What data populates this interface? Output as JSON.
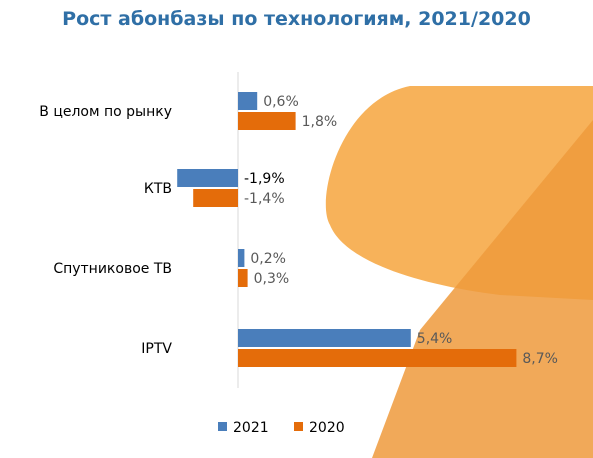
{
  "colors": {
    "title": "#2f6fa6",
    "series_2021": "#4a7ebb",
    "series_2020": "#e46c0a",
    "axis": "#d9d9d9",
    "value_label": "#595959",
    "value_label_emph": "#000000",
    "deco_light": "#f7b25a",
    "deco_dark": "#ef9a3c"
  },
  "chart_data": {
    "type": "bar",
    "orientation": "horizontal",
    "title": "Рост абонбазы по технологиям, 2021/2020",
    "categories": [
      "В целом по рынку",
      "КТВ",
      "Спутниковое ТВ",
      "IPTV"
    ],
    "series": [
      {
        "name": "2021",
        "values": [
          0.6,
          -1.9,
          0.2,
          5.4
        ],
        "labels": [
          "0,6%",
          "-1,9%",
          "0,2%",
          "5,4%"
        ]
      },
      {
        "name": "2020",
        "values": [
          1.8,
          -1.4,
          0.3,
          8.7
        ],
        "labels": [
          "1,8%",
          "-1,4%",
          "0,3%",
          "8,7%"
        ]
      }
    ],
    "xlim": [
      -2.0,
      9.0
    ],
    "grid": false,
    "legend": "bottom"
  }
}
